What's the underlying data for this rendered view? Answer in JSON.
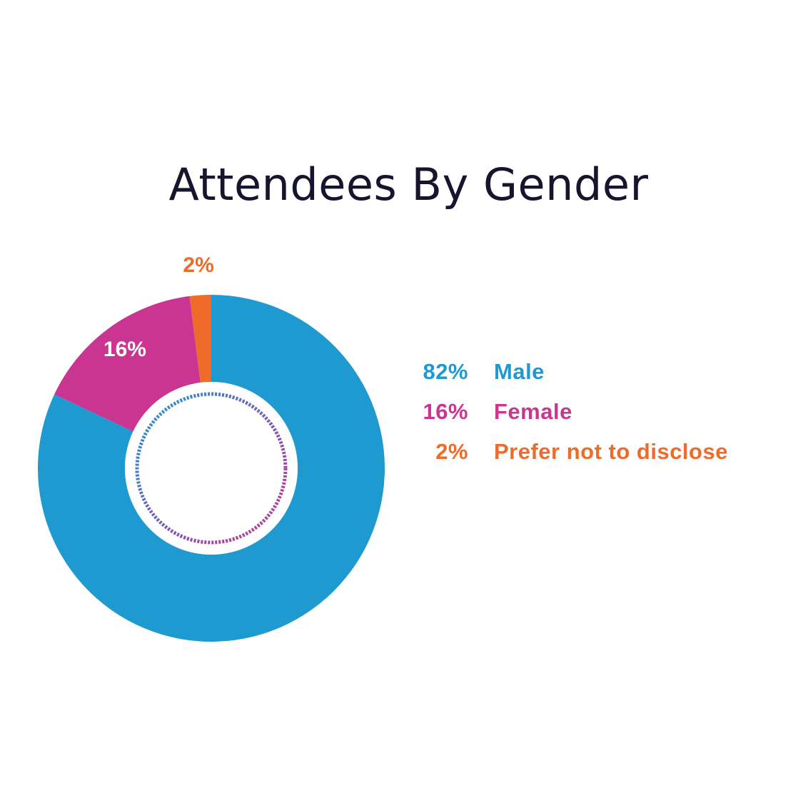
{
  "chart_data": {
    "type": "pie",
    "title": "Attendees By Gender",
    "slices": [
      {
        "label": "Male",
        "value": 82,
        "value_label": "82%",
        "color": "#1e9ad0"
      },
      {
        "label": "Female",
        "value": 16,
        "value_label": "16%",
        "color": "#c93590"
      },
      {
        "label": "Prefer not to disclose",
        "value": 2,
        "value_label": "2%",
        "color": "#ee6b2a"
      }
    ],
    "donut": true,
    "legend_position": "right"
  }
}
